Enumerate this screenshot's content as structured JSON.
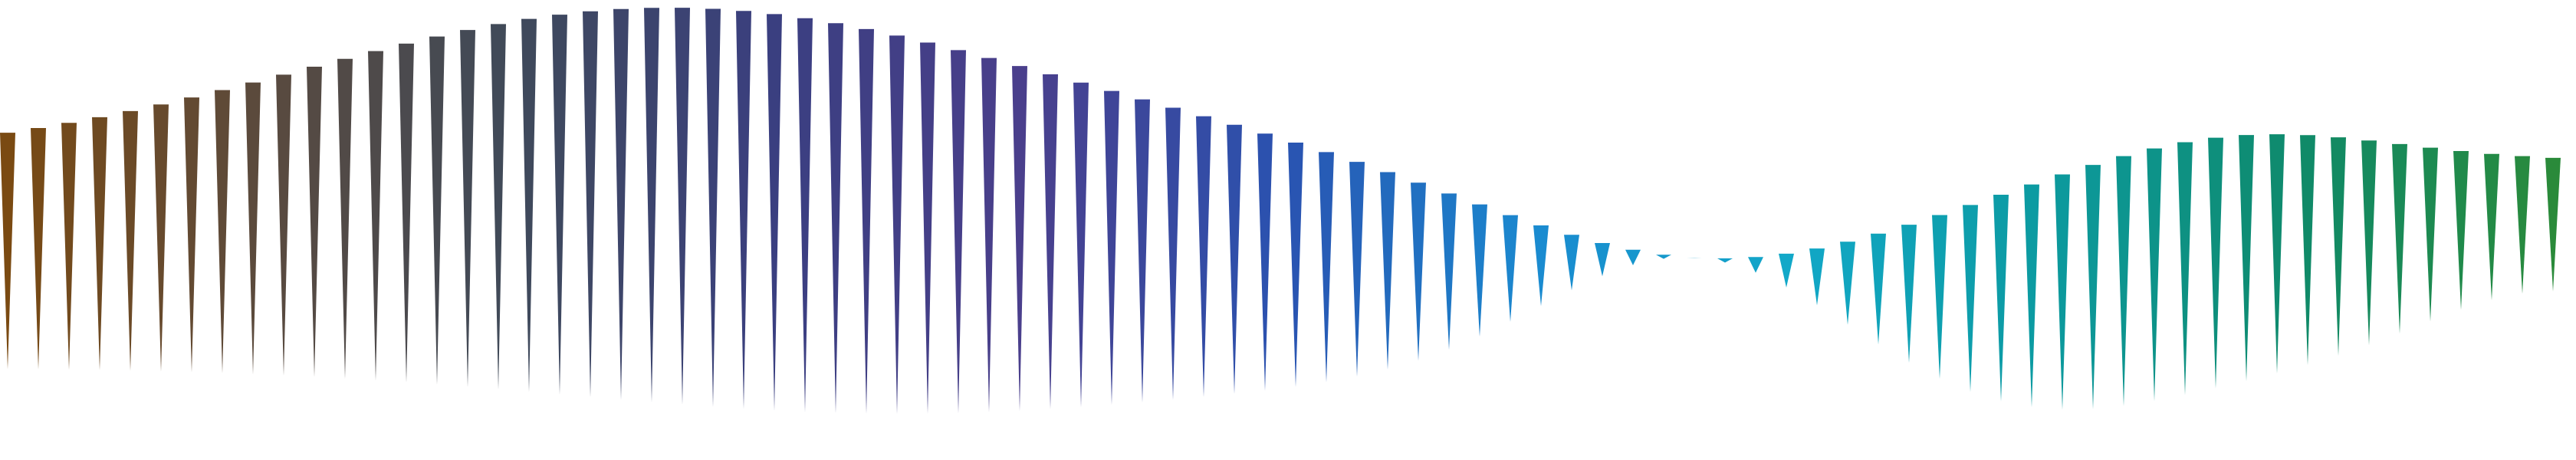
{
  "artwork": {
    "kind": "spike-wave",
    "background": "#ffffff",
    "gradient_stops": [
      "#7a4a12",
      "#5a4a3e",
      "#3f4a5a",
      "#3a3f80",
      "#4a3f8c",
      "#2a52b0",
      "#1a8ad0",
      "#12a8c8",
      "#0c9aa0",
      "#0f8a6a",
      "#2a8a3a"
    ]
  }
}
